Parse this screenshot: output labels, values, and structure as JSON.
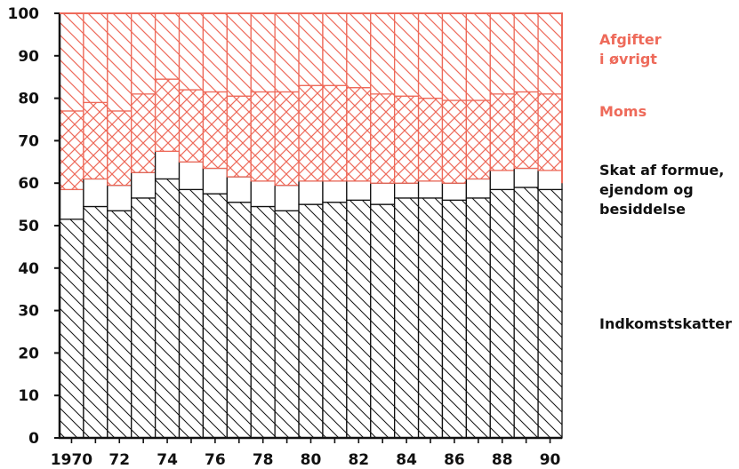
{
  "chart_data": {
    "type": "bar",
    "stacked": true,
    "title": "",
    "xlabel": "",
    "ylabel": "",
    "ylim": [
      0,
      100
    ],
    "y_ticks": [
      0,
      10,
      20,
      30,
      40,
      50,
      60,
      70,
      80,
      90,
      100
    ],
    "categories": [
      "1970",
      "1971",
      "1972",
      "1973",
      "1974",
      "1975",
      "1976",
      "1977",
      "1978",
      "1979",
      "1980",
      "1981",
      "1982",
      "1983",
      "1984",
      "1985",
      "1986",
      "1987",
      "1988",
      "1989",
      "1990"
    ],
    "x_tick_labels": [
      "1970",
      "",
      "72",
      "",
      "74",
      "",
      "76",
      "",
      "78",
      "",
      "80",
      "",
      "82",
      "",
      "84",
      "",
      "86",
      "",
      "88",
      "",
      "90"
    ],
    "series": [
      {
        "name": "Indkomstskatter",
        "color": "#111111",
        "pattern": "hatch-back",
        "values": [
          51.5,
          54.5,
          53.5,
          56.5,
          61.0,
          58.5,
          57.5,
          55.5,
          54.5,
          53.5,
          55.0,
          55.5,
          56.0,
          55.0,
          56.5,
          56.5,
          56.0,
          56.5,
          58.5,
          59.0,
          58.5
        ]
      },
      {
        "name": "Skat af formue, ejendom og besiddelse",
        "color": "#111111",
        "pattern": "plain",
        "values": [
          7.0,
          6.5,
          6.0,
          6.0,
          6.5,
          6.5,
          6.0,
          6.0,
          6.0,
          6.0,
          5.5,
          5.0,
          4.5,
          5.0,
          3.5,
          4.0,
          4.0,
          4.5,
          4.5,
          4.5,
          4.5
        ]
      },
      {
        "name": "Moms",
        "color": "#ee6a5a",
        "pattern": "crosshatch",
        "values": [
          18.5,
          18.0,
          17.5,
          18.5,
          17.0,
          17.0,
          18.0,
          19.0,
          21.0,
          22.0,
          22.5,
          22.5,
          22.0,
          21.0,
          20.5,
          19.5,
          19.5,
          18.5,
          18.0,
          18.0,
          18.0
        ]
      },
      {
        "name": "Afgifter i øvrigt",
        "color": "#ee6a5a",
        "pattern": "hatch-back",
        "values": [
          23.0,
          21.0,
          23.0,
          19.0,
          15.5,
          18.0,
          18.5,
          19.5,
          18.5,
          18.5,
          17.0,
          17.0,
          17.5,
          19.0,
          19.5,
          20.0,
          20.5,
          20.5,
          19.0,
          18.5,
          19.0
        ]
      }
    ],
    "legend_placement": "right",
    "grid": false
  },
  "legend": {
    "afgifter": "Afgifter\ni øvrigt",
    "moms": "Moms",
    "skat": "Skat af formue,\nejendom og\nbesiddelse",
    "indkomst": "Indkomstskatter"
  }
}
